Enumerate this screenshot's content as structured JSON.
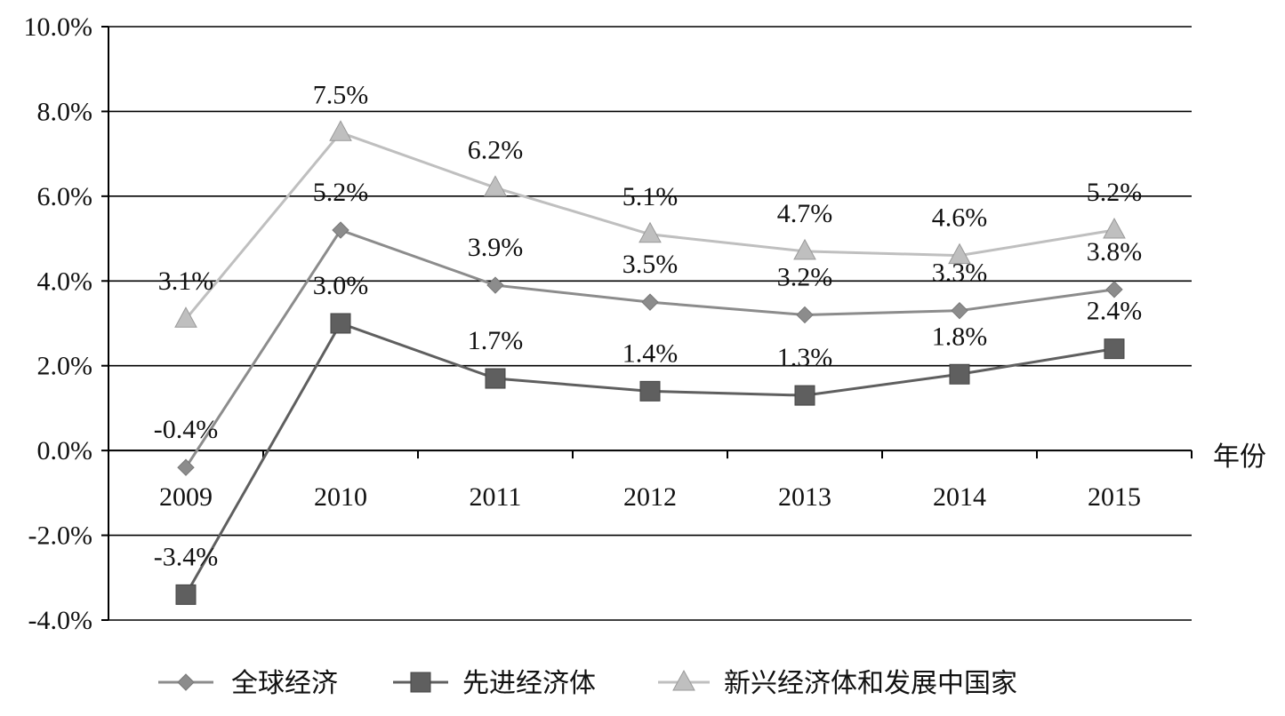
{
  "chart_data": {
    "type": "line",
    "title": "",
    "xlabel": "年份",
    "ylabel": "",
    "categories": [
      "2009",
      "2010",
      "2011",
      "2012",
      "2013",
      "2014",
      "2015"
    ],
    "y_ticks": [
      "10.0%",
      "8.0%",
      "6.0%",
      "4.0%",
      "2.0%",
      "0.0%",
      "-2.0%",
      "-4.0%"
    ],
    "ylim": [
      -4.0,
      10.0
    ],
    "grid": "horizontal",
    "legend_position": "bottom",
    "series": [
      {
        "name": "全球经济",
        "marker": "diamond",
        "color": "#8c8c8c",
        "values": [
          -0.4,
          5.2,
          3.9,
          3.5,
          3.2,
          3.3,
          3.8
        ],
        "labels": [
          "-0.4%",
          "5.2%",
          "3.9%",
          "3.5%",
          "3.2%",
          "3.3%",
          "3.8%"
        ]
      },
      {
        "name": "先进经济体",
        "marker": "square",
        "color": "#5f5f5f",
        "values": [
          -3.4,
          3.0,
          1.7,
          1.4,
          1.3,
          1.8,
          2.4
        ],
        "labels": [
          "-3.4%",
          "3.0%",
          "1.7%",
          "1.4%",
          "1.3%",
          "1.8%",
          "2.4%"
        ]
      },
      {
        "name": "新兴经济体和发展中国家",
        "marker": "triangle",
        "color": "#bfbfbf",
        "values": [
          3.1,
          7.5,
          6.2,
          5.1,
          4.7,
          4.6,
          5.2
        ],
        "labels": [
          "3.1%",
          "7.5%",
          "6.2%",
          "5.1%",
          "4.7%",
          "4.6%",
          "5.2%"
        ]
      }
    ]
  }
}
